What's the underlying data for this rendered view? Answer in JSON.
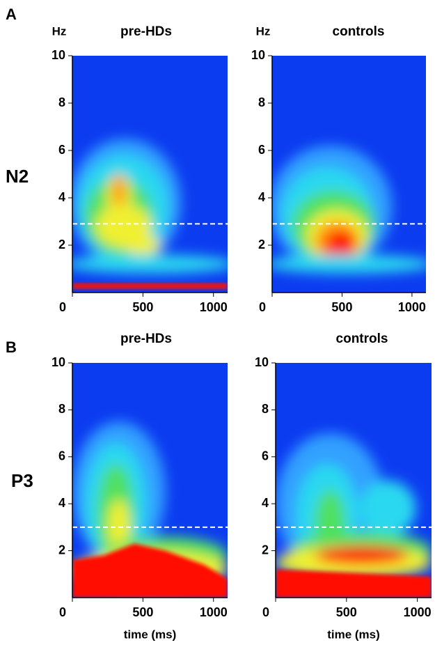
{
  "figure": {
    "rows": [
      {
        "letter": "A",
        "name": "N2"
      },
      {
        "letter": "B",
        "name": "P3"
      }
    ]
  },
  "chart_data": [
    {
      "type": "heatmap",
      "title": "pre-HDs",
      "ylabel": "Hz",
      "xlim": [
        0,
        1100
      ],
      "ylim": [
        0,
        10
      ],
      "xticks": [
        0,
        500,
        1000
      ],
      "yticks": [
        2,
        4,
        6,
        8,
        10
      ],
      "threshold": 2.9
    },
    {
      "type": "heatmap",
      "title": "controls",
      "ylabel": "Hz",
      "xlim": [
        0,
        1100
      ],
      "ylim": [
        0,
        10
      ],
      "xticks": [
        0,
        500,
        1000
      ],
      "yticks": [
        2,
        4,
        6,
        8,
        10
      ],
      "threshold": 2.9
    },
    {
      "type": "heatmap",
      "title": "pre-HDs",
      "xlabel": "time (ms)",
      "xlim": [
        0,
        1100
      ],
      "ylim": [
        0,
        10
      ],
      "xticks": [
        0,
        500,
        1000
      ],
      "yticks": [
        2,
        4,
        6,
        8,
        10
      ],
      "threshold": 3.0
    },
    {
      "type": "heatmap",
      "title": "controls",
      "xlabel": "time (ms)",
      "xlim": [
        0,
        1100
      ],
      "ylim": [
        0,
        10
      ],
      "xticks": [
        0,
        500,
        1000
      ],
      "yticks": [
        2,
        4,
        6,
        8,
        10
      ],
      "threshold": 3.0
    }
  ]
}
